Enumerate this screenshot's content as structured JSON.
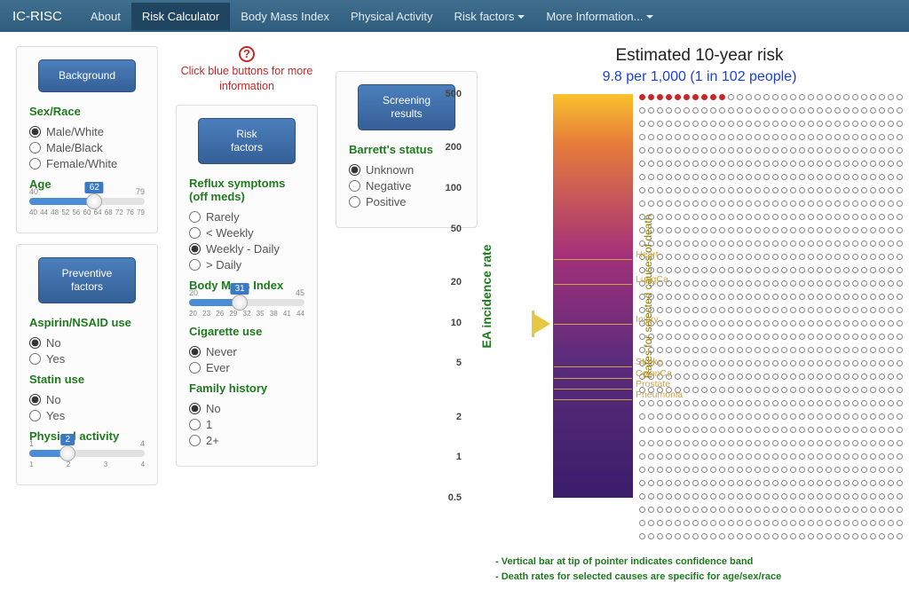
{
  "nav": {
    "brand": "IC-RISC",
    "items": [
      "About",
      "Risk Calculator",
      "Body Mass Index",
      "Physical Activity",
      "Risk factors",
      "More Information..."
    ],
    "dropdown": [
      false,
      false,
      false,
      false,
      true,
      true
    ],
    "active_index": 1
  },
  "hint": "Click blue buttons for more information",
  "panels": {
    "background": {
      "button": "Background",
      "sex_label": "Sex/Race",
      "sex_options": [
        "Male/White",
        "Male/Black",
        "Female/White"
      ],
      "sex_selected": 0,
      "age_label": "Age",
      "age": {
        "min": 40,
        "max": 79,
        "value": 62,
        "ticks": "40 44 48 52 56 60 64 68 72 76 79"
      }
    },
    "preventive": {
      "button": "Preventive\nfactors",
      "aspirin_label": "Aspirin/NSAID use",
      "aspirin_options": [
        "No",
        "Yes"
      ],
      "aspirin_selected": 0,
      "statin_label": "Statin use",
      "statin_options": [
        "No",
        "Yes"
      ],
      "statin_selected": 0,
      "activity_label": "Physical activity",
      "activity": {
        "min": 1,
        "max": 4,
        "value": 2,
        "ticks": "1        2        3        4"
      }
    },
    "risk": {
      "button": "Risk\nfactors",
      "reflux_label": "Reflux symptoms\n(off meds)",
      "reflux_options": [
        "Rarely",
        "< Weekly",
        "Weekly - Daily",
        "> Daily"
      ],
      "reflux_selected": 2,
      "bmi_label": "Body Mass Index",
      "bmi": {
        "min": 20,
        "max": 45,
        "value": 31,
        "ticks": "20 23 26 29 32 35 38 41 44"
      },
      "cig_label": "Cigarette use",
      "cig_options": [
        "Never",
        "Ever"
      ],
      "cig_selected": 0,
      "fam_label": "Family history",
      "fam_options": [
        "No",
        "1",
        "2+"
      ],
      "fam_selected": 0
    },
    "screening": {
      "button": "Screening\nresults",
      "barrett_label": "Barrett's status",
      "barrett_options": [
        "Unknown",
        "Negative",
        "Positive"
      ],
      "barrett_selected": 0
    }
  },
  "result": {
    "title": "Estimated 10-year risk",
    "value_text": "9.8 per 1,000  (1 in 102 people)",
    "filled_dots": 10,
    "total_dots": 1000,
    "dot_cols": 30,
    "dot_rows": 34,
    "chart": {
      "ylabel": "EA incidence rate",
      "ylabel2": "Rates for selected causes of death",
      "scale_ticks": [
        500,
        200,
        100,
        50,
        20,
        10,
        5,
        2,
        1,
        0.5
      ],
      "pointer_value": 9.8,
      "causes": [
        {
          "label": "Heart",
          "value": 32
        },
        {
          "label": "LungCa",
          "value": 21
        },
        {
          "label": "Injury",
          "value": 10.5
        },
        {
          "label": "Stroke",
          "value": 5.1
        },
        {
          "label": "ColonCa",
          "value": 4.2
        },
        {
          "label": "Prostate",
          "value": 3.5
        },
        {
          "label": "Pneumonia",
          "value": 2.9
        }
      ],
      "gradient_colors": [
        "#f9c22d",
        "#e77d3a",
        "#a4307a",
        "#5d2c7c",
        "#3a1e6b"
      ]
    },
    "footnote1": "- Vertical bar at tip of pointer indicates confidence band",
    "footnote2": "- Death rates for selected causes are specific for age/sex/race"
  }
}
